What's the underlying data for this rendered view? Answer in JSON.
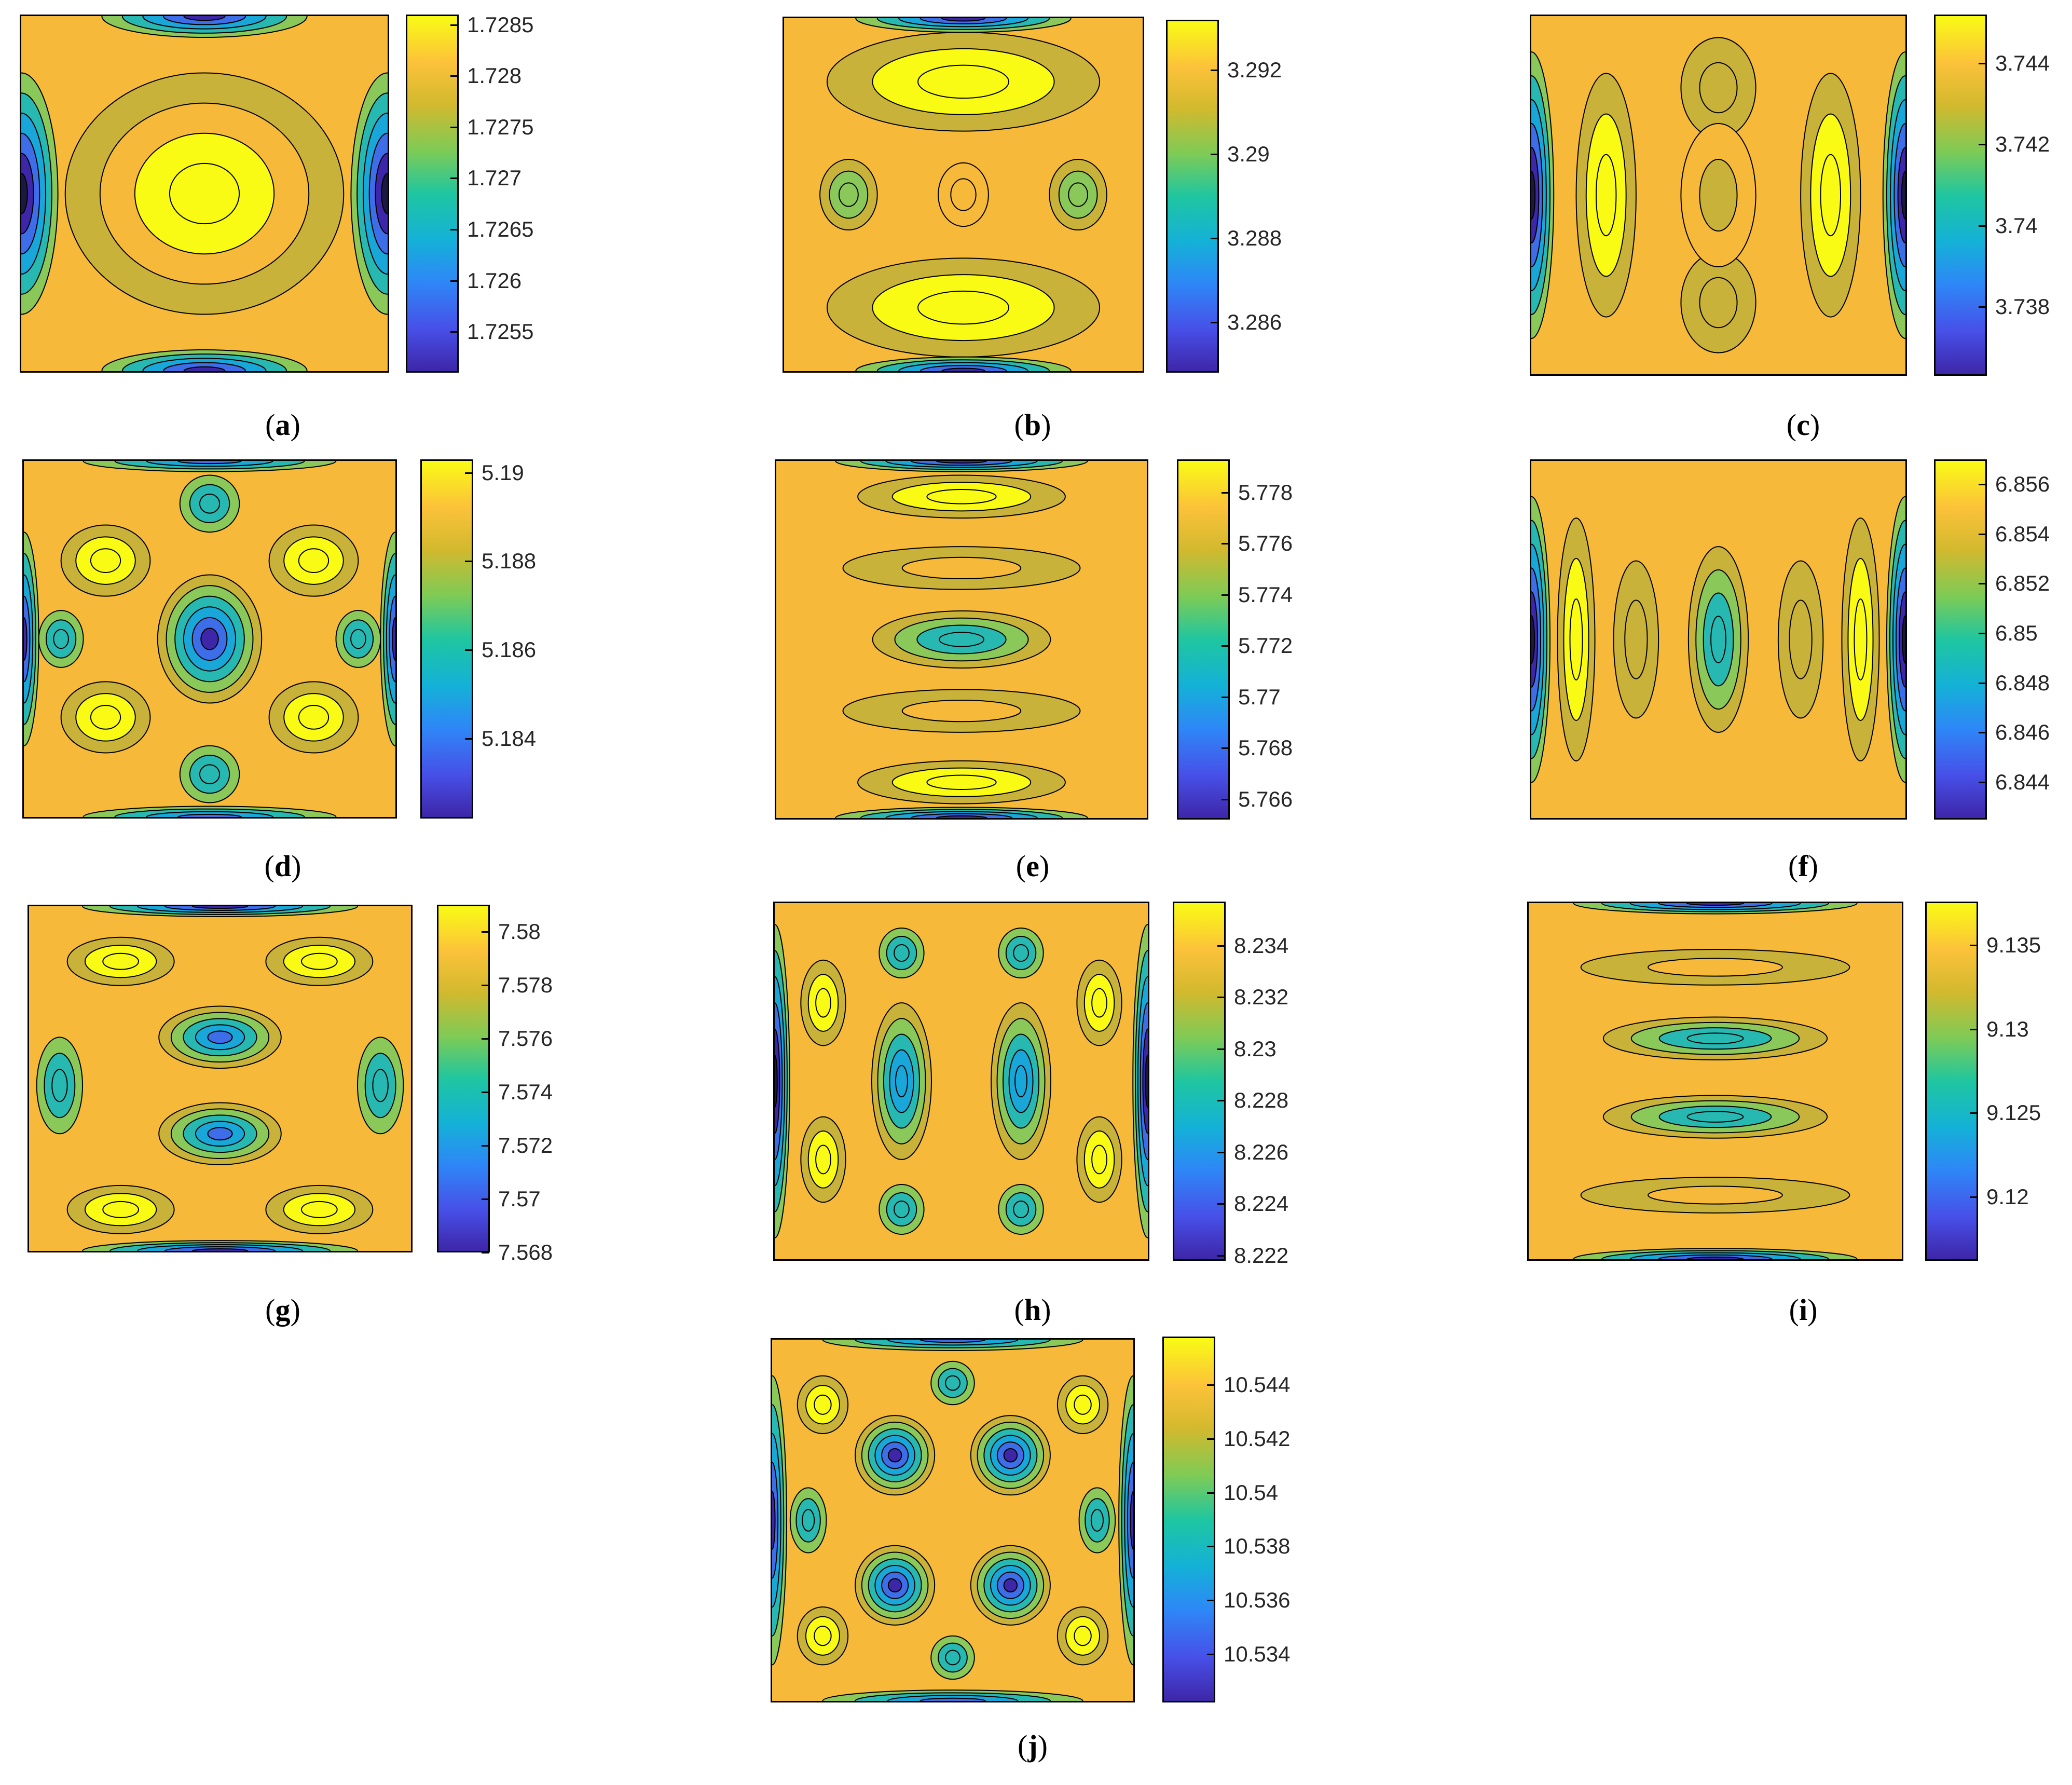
{
  "chart_data": [
    {
      "type": "heatmap",
      "panel": "a",
      "colorbar_ticks": [
        "1.7285",
        "1.728",
        "1.7275",
        "1.727",
        "1.7265",
        "1.726",
        "1.7255"
      ],
      "clim": [
        1.7251,
        1.7286
      ],
      "colormap": "parula",
      "contour_lines": true
    },
    {
      "type": "heatmap",
      "panel": "b",
      "colorbar_ticks": [
        "3.292",
        "3.29",
        "3.288",
        "3.286"
      ],
      "clim": [
        3.2848,
        3.2932
      ],
      "colormap": "parula",
      "contour_lines": true
    },
    {
      "type": "heatmap",
      "panel": "c",
      "colorbar_ticks": [
        "3.744",
        "3.742",
        "3.74",
        "3.738"
      ],
      "clim": [
        3.7363,
        3.7452
      ],
      "colormap": "parula",
      "contour_lines": true
    },
    {
      "type": "heatmap",
      "panel": "d",
      "colorbar_ticks": [
        "5.19",
        "5.188",
        "5.186",
        "5.184"
      ],
      "clim": [
        5.1822,
        5.1903
      ],
      "colormap": "parula",
      "contour_lines": true
    },
    {
      "type": "heatmap",
      "panel": "e",
      "colorbar_ticks": [
        "5.778",
        "5.776",
        "5.774",
        "5.772",
        "5.77",
        "5.768",
        "5.766"
      ],
      "clim": [
        5.7652,
        5.7793
      ],
      "colormap": "parula",
      "contour_lines": true
    },
    {
      "type": "heatmap",
      "panel": "f",
      "colorbar_ticks": [
        "6.856",
        "6.854",
        "6.852",
        "6.85",
        "6.848",
        "6.846",
        "6.844"
      ],
      "clim": [
        6.8425,
        6.857
      ],
      "colormap": "parula",
      "contour_lines": true
    },
    {
      "type": "heatmap",
      "panel": "g",
      "colorbar_ticks": [
        "7.58",
        "7.578",
        "7.576",
        "7.574",
        "7.572",
        "7.57",
        "7.568"
      ],
      "clim": [
        7.568,
        7.581
      ],
      "colormap": "parula",
      "contour_lines": true
    },
    {
      "type": "heatmap",
      "panel": "h",
      "colorbar_ticks": [
        "8.234",
        "8.232",
        "8.23",
        "8.228",
        "8.226",
        "8.224",
        "8.222"
      ],
      "clim": [
        8.2218,
        8.2357
      ],
      "colormap": "parula",
      "contour_lines": true
    },
    {
      "type": "heatmap",
      "panel": "i",
      "colorbar_ticks": [
        "9.135",
        "9.13",
        "9.125",
        "9.12"
      ],
      "clim": [
        9.1162,
        9.1376
      ],
      "colormap": "parula",
      "contour_lines": true
    },
    {
      "type": "heatmap",
      "panel": "j",
      "colorbar_ticks": [
        "10.544",
        "10.542",
        "10.54",
        "10.538",
        "10.536",
        "10.534"
      ],
      "clim": [
        10.5322,
        10.5458
      ],
      "colormap": "parula",
      "contour_lines": true
    }
  ],
  "captions": {
    "a": "a",
    "b": "b",
    "c": "c",
    "d": "d",
    "e": "e",
    "f": "f",
    "g": "g",
    "h": "h",
    "i": "i",
    "j": "j"
  },
  "colors": {
    "yellow": "#f9fb15",
    "orange": "#f6b93a",
    "olive": "#c9b23a",
    "green": "#8ac85a",
    "teal": "#27b8b2",
    "cyan": "#19a6d8",
    "blue": "#3d6ee8",
    "navy": "#3e26a8",
    "dark": "#1a1a40",
    "line": "#000000"
  }
}
